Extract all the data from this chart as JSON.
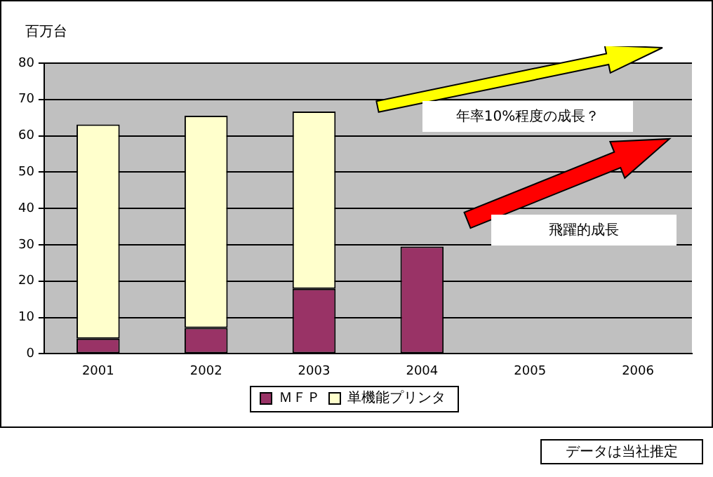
{
  "chart_data": {
    "type": "bar",
    "stacked": true,
    "ylabel": "百万台",
    "categories": [
      "2001",
      "2002",
      "2003",
      "2004",
      "2005",
      "2006"
    ],
    "series": [
      {
        "name": "ＭＦＰ",
        "color": "#993366",
        "values": [
          4.2,
          7.1,
          17.9,
          29.5,
          null,
          null
        ]
      },
      {
        "name": "単機能プリンタ",
        "color": "#ffffcc",
        "values": [
          58.9,
          58.4,
          48.8,
          null,
          null,
          null
        ]
      }
    ],
    "ylim": [
      0,
      80
    ],
    "yticks": [
      0,
      10,
      20,
      30,
      40,
      50,
      60,
      70,
      80
    ],
    "grid": "y",
    "legend": "bottom",
    "annotations": [
      "年率10%程度の成長？",
      "飛躍的成長",
      "データは当社推定"
    ]
  }
}
